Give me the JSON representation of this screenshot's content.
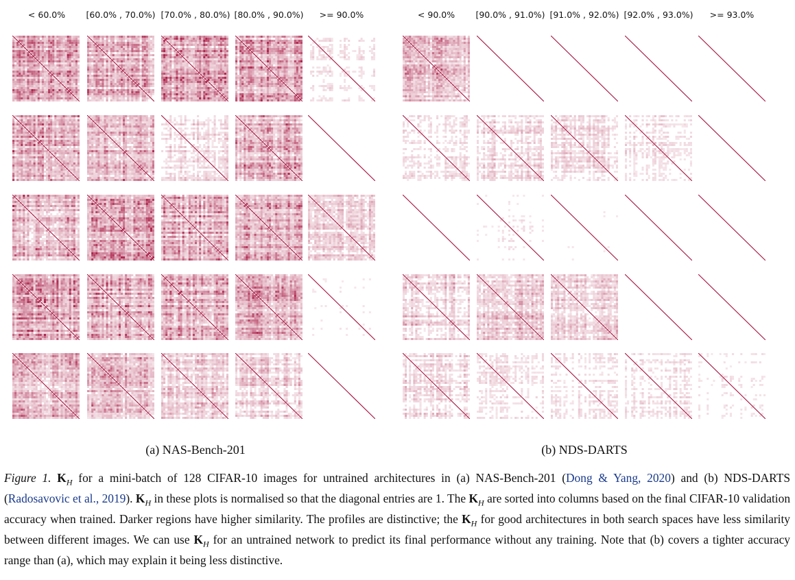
{
  "figure": {
    "panel_a": {
      "title": "(a) NAS-Bench-201",
      "columns": [
        "< 60.0%",
        "[60.0% , 70.0%)",
        "[70.0% , 80.0%)",
        "[80.0% , 90.0%)",
        ">= 90.0%"
      ],
      "similarity_density": [
        [
          0.85,
          0.75,
          0.9,
          0.8,
          0.2
        ],
        [
          0.8,
          0.85,
          0.35,
          0.8,
          0.04
        ],
        [
          0.85,
          0.85,
          0.8,
          0.85,
          0.45
        ],
        [
          0.9,
          0.85,
          0.8,
          0.8,
          0.12
        ],
        [
          0.75,
          0.7,
          0.5,
          0.45,
          0.08
        ]
      ]
    },
    "panel_b": {
      "title": "(b) NDS-DARTS",
      "columns": [
        "< 90.0%",
        "[90.0% , 91.0%)",
        "[91.0% , 92.0%)",
        "[92.0% , 93.0%)",
        ">= 93.0%"
      ],
      "similarity_density": [
        [
          0.7,
          0.1,
          0.06,
          0.08,
          0.05
        ],
        [
          0.3,
          0.35,
          0.35,
          0.25,
          0.03
        ],
        [
          0.02,
          0.15,
          0.1,
          0.1,
          0.1
        ],
        [
          0.45,
          0.6,
          0.45,
          0.06,
          0.06
        ],
        [
          0.35,
          0.25,
          0.2,
          0.25,
          0.15
        ]
      ]
    },
    "colors": {
      "similarity": "#a50f3c",
      "background": "#ffffff",
      "citation": "#1a3a8c"
    }
  },
  "caption": {
    "label": "Figure 1.",
    "kh_symbol": "K",
    "kh_subscript": "H",
    "p1": " for a mini-batch of 128 CIFAR-10 images for untrained architectures in (a) NAS-Bench-201 (",
    "cite1": "Dong & Yang, 2020",
    "p2": ") and (b) NDS-DARTS (",
    "cite2": "Radosavovic et al., 2019",
    "p3": "). ",
    "p4": " in these plots is normalised so that the diagonal entries are 1. The ",
    "p5": " are sorted into columns based on the final CIFAR-10 validation accuracy when trained. Darker regions have higher similarity. The profiles are distinctive; the ",
    "p6": " for good architectures in both search spaces have less similarity between different images. We can use ",
    "p7": " for an untrained network to predict its final performance without any training. Note that (b) covers a tighter accuracy range than (a), which may explain it being less distinctive."
  }
}
